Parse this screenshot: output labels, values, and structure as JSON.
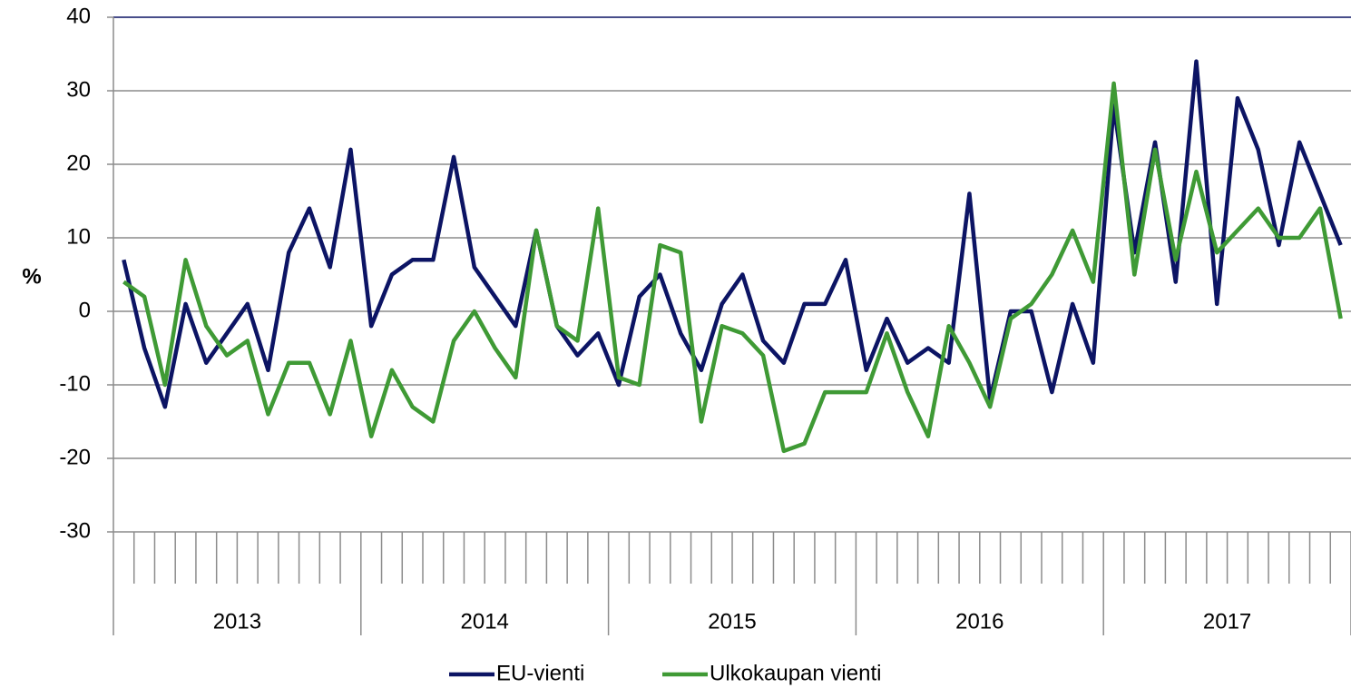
{
  "chart_data": {
    "type": "line",
    "y_label": "%",
    "x_groups": [
      "2013",
      "2014",
      "2015",
      "2016",
      "2017"
    ],
    "categories": [
      null,
      null,
      null,
      null,
      null,
      null,
      null,
      null,
      null,
      null,
      null,
      null,
      null,
      null,
      null,
      null,
      null,
      null,
      null,
      null,
      null,
      null,
      null,
      null,
      null,
      null,
      null,
      null,
      null,
      null,
      null,
      null,
      null,
      null,
      null,
      null,
      null,
      null,
      null,
      null,
      null,
      null,
      null,
      null,
      null,
      null,
      null,
      null,
      null,
      null,
      null,
      null,
      null,
      null,
      null,
      null,
      null,
      null,
      null,
      null
    ],
    "series": [
      {
        "name": "EU-vienti",
        "color": "#0c1464",
        "values": [
          7,
          -5,
          -13,
          1,
          -7,
          -3,
          1,
          -8,
          8,
          14,
          6,
          22,
          -2,
          5,
          7,
          7,
          21,
          6,
          2,
          -2,
          11,
          -2,
          -6,
          -3,
          -10,
          2,
          5,
          -3,
          -8,
          1,
          5,
          -4,
          -7,
          1,
          1,
          7,
          -8,
          -1,
          -7,
          -5,
          -7,
          16,
          -12,
          0,
          0,
          -11,
          1,
          -7,
          28,
          8,
          23,
          4,
          34,
          1,
          29,
          22,
          9,
          23,
          16,
          9
        ]
      },
      {
        "name": "Ulkokaupan vienti",
        "color": "#3f9a35",
        "values": [
          4,
          2,
          -10,
          7,
          -2,
          -6,
          -4,
          -14,
          -7,
          -7,
          -14,
          -4,
          -17,
          -8,
          -13,
          -15,
          -4,
          0,
          -5,
          -9,
          11,
          -2,
          -4,
          14,
          -9,
          -10,
          9,
          8,
          -15,
          -2,
          -3,
          -6,
          -19,
          -18,
          -11,
          -11,
          -11,
          -3,
          -11,
          -17,
          -2,
          -7,
          -13,
          -1,
          1,
          5,
          11,
          4,
          31,
          5,
          22,
          7,
          19,
          8,
          11,
          14,
          10,
          10,
          14,
          -1
        ]
      }
    ],
    "ylim": [
      -30,
      40
    ],
    "yticks": [
      -30,
      -20,
      -10,
      0,
      10,
      20,
      30,
      40
    ],
    "grid": true,
    "legend": "bottom"
  }
}
